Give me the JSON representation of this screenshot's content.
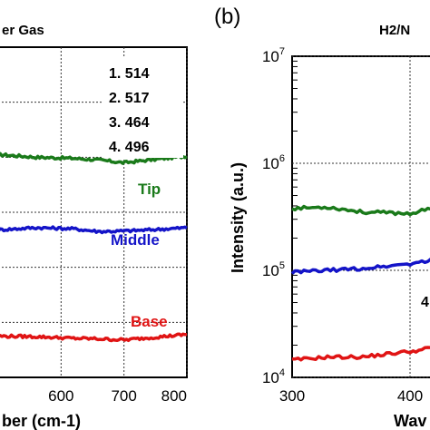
{
  "chart_data": [
    {
      "type": "line",
      "title": "er Gas",
      "xlabel": "ber (cm-1)",
      "ylabel": "",
      "xlim": [
        500,
        800
      ],
      "x_ticks": [
        "600",
        "700",
        "800"
      ],
      "x_tick_values": [
        600,
        700,
        800
      ],
      "ylim": [
        0,
        6
      ],
      "grid": true,
      "annotations": [
        "1. 514",
        "2. 517",
        "3. 464",
        "4. 496"
      ],
      "series": [
        {
          "name": "Tip",
          "color": "#1a7a1a",
          "x": [
            500,
            560,
            620,
            660,
            700,
            740,
            800
          ],
          "y": [
            4.05,
            4.0,
            3.98,
            3.95,
            3.9,
            3.95,
            4.02
          ]
        },
        {
          "name": "Middle",
          "color": "#1414c8",
          "x": [
            500,
            560,
            620,
            660,
            700,
            740,
            800
          ],
          "y": [
            2.68,
            2.72,
            2.7,
            2.65,
            2.66,
            2.68,
            2.72
          ]
        },
        {
          "name": "Base",
          "color": "#e01414",
          "x": [
            500,
            560,
            620,
            660,
            700,
            740,
            800
          ],
          "y": [
            0.75,
            0.74,
            0.71,
            0.7,
            0.68,
            0.72,
            0.78
          ]
        }
      ]
    },
    {
      "type": "line",
      "panel_label": "(b)",
      "title": "H2/N",
      "xlabel": "Wav",
      "ylabel": "Intensity (a.u.)",
      "xlim": [
        300,
        550
      ],
      "x_ticks": [
        "300",
        "400"
      ],
      "x_tick_values": [
        300,
        400
      ],
      "yscale": "log",
      "ylim": [
        10000,
        10000000
      ],
      "y_ticks": [
        10000,
        100000,
        1000000,
        10000000
      ],
      "grid": true,
      "annotations": [
        "4"
      ],
      "series": [
        {
          "color": "#1a7a1a",
          "x": [
            300,
            330,
            360,
            400,
            420,
            450,
            480
          ],
          "y": [
            380000,
            390000,
            350000,
            340000,
            380000,
            430000,
            480000
          ]
        },
        {
          "color": "#1414c8",
          "x": [
            300,
            330,
            360,
            400,
            420,
            440,
            460,
            480
          ],
          "y": [
            96000,
            100000,
            104000,
            115000,
            125000,
            140000,
            165000,
            220000
          ]
        },
        {
          "color": "#e01414",
          "x": [
            300,
            330,
            360,
            390,
            410,
            430,
            450,
            470,
            480
          ],
          "y": [
            14500,
            15500,
            15500,
            17000,
            18000,
            21000,
            26000,
            34000,
            38000
          ]
        }
      ]
    }
  ]
}
